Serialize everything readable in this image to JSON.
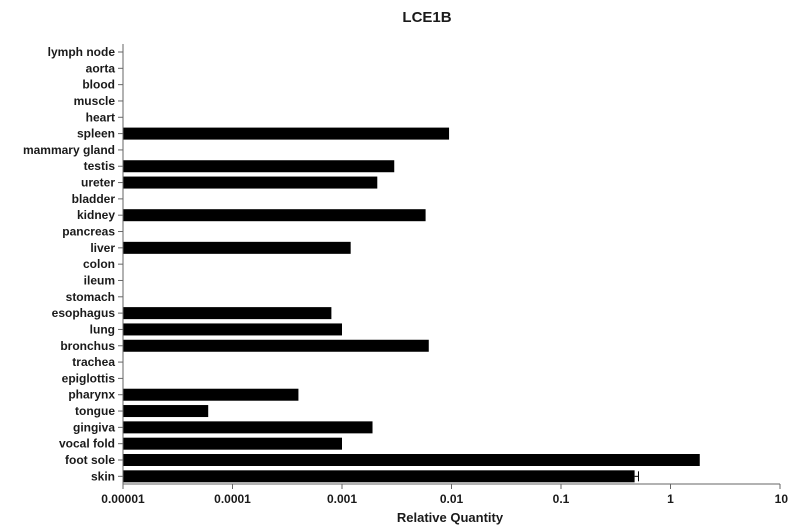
{
  "chart_data": {
    "type": "bar",
    "orientation": "horizontal",
    "title": "LCE1B",
    "xlabel": "Relative Quantity",
    "ylabel": "",
    "x_scale": "log",
    "xlim": [
      1e-05,
      10
    ],
    "x_ticks": [
      "0.00001",
      "0.0001",
      "0.001",
      "0.01",
      "0.1",
      "1",
      "10"
    ],
    "x_tick_values": [
      1e-05,
      0.0001,
      0.001,
      0.01,
      0.1,
      1,
      10
    ],
    "grid": false,
    "bar_color": "#000000",
    "categories": [
      "lymph node",
      "aorta",
      "blood",
      "muscle",
      "heart",
      "spleen",
      "mammary gland",
      "testis",
      "ureter",
      "bladder",
      "kidney",
      "pancreas",
      "liver",
      "colon",
      "ileum",
      "stomach",
      "esophagus",
      "lung",
      "bronchus",
      "trachea",
      "epiglottis",
      "pharynx",
      "tongue",
      "gingiva",
      "vocal fold",
      "foot sole",
      "skin"
    ],
    "values": [
      null,
      null,
      null,
      null,
      null,
      0.0095,
      null,
      0.003,
      0.0021,
      null,
      0.0058,
      null,
      0.0012,
      null,
      null,
      null,
      0.0008,
      0.001,
      0.0062,
      null,
      null,
      0.0004,
      6e-05,
      0.0019,
      0.001,
      1.85,
      0.47
    ],
    "error_bars": [
      null,
      null,
      null,
      null,
      null,
      null,
      null,
      null,
      null,
      null,
      null,
      null,
      null,
      null,
      null,
      null,
      null,
      null,
      null,
      null,
      null,
      null,
      null,
      null,
      null,
      null,
      0.04
    ]
  }
}
